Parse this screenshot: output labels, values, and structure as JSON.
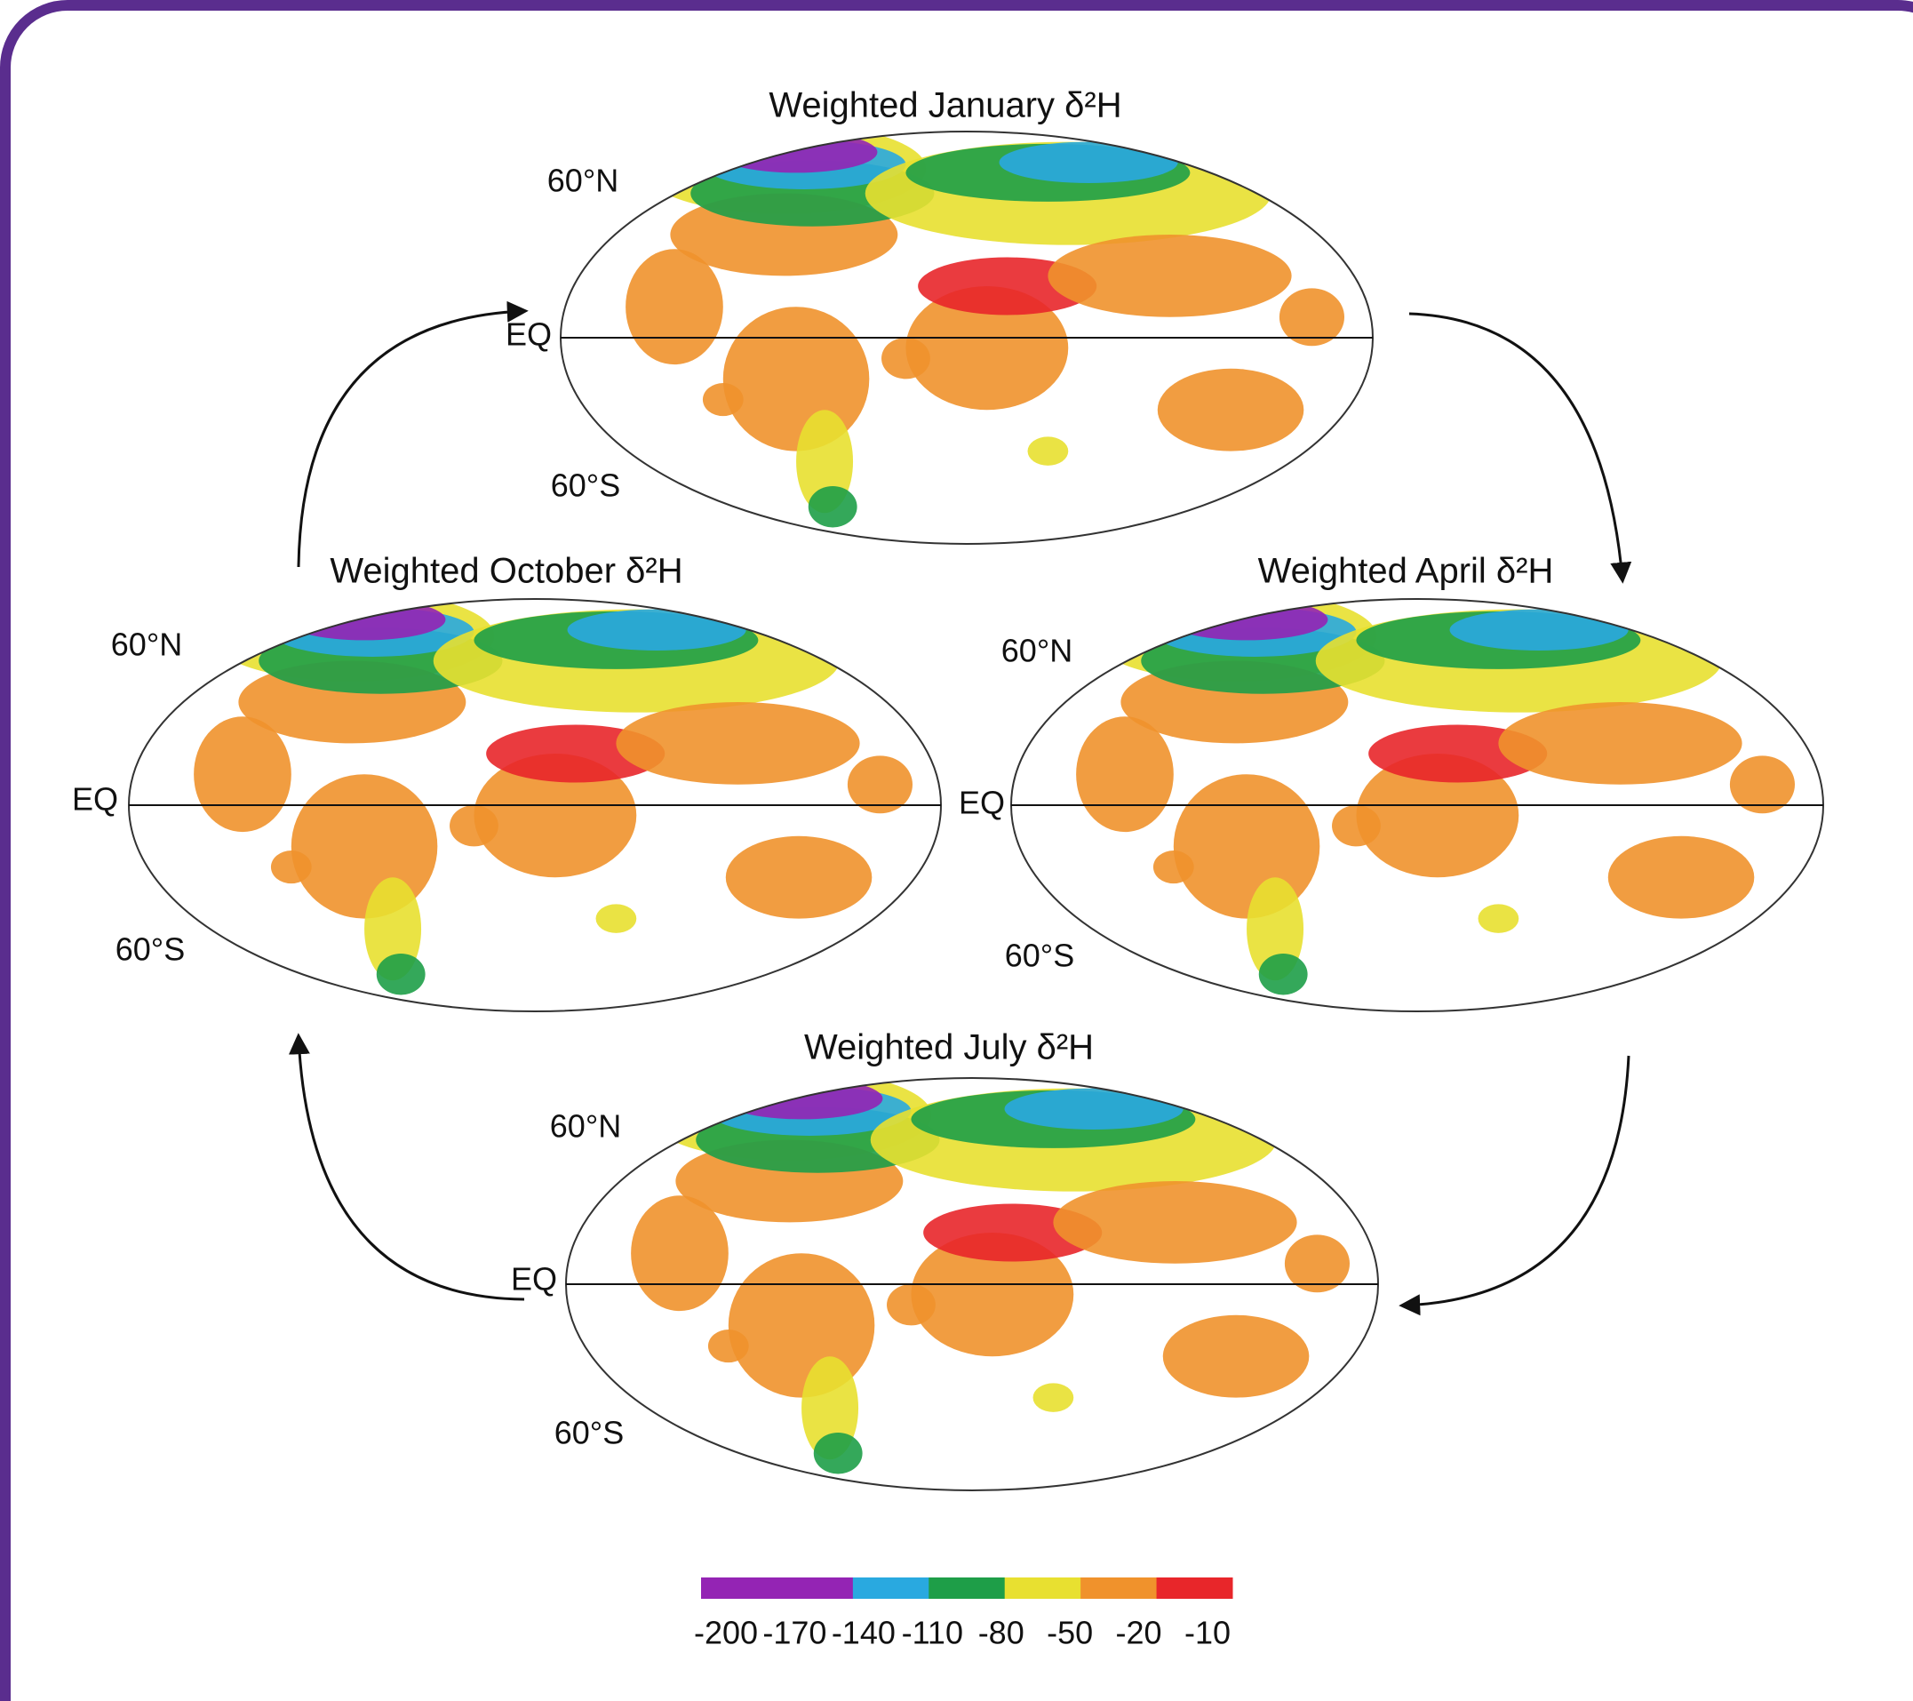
{
  "maps": [
    {
      "title": "Weighted January δ²H",
      "labels": [
        "60°N",
        "EQ",
        "60°S"
      ]
    },
    {
      "title": "Weighted April δ²H",
      "labels": [
        "60°N",
        "EQ",
        "60°S"
      ]
    },
    {
      "title": "Weighted July δ²H",
      "labels": [
        "60°N",
        "EQ",
        "60°S"
      ]
    },
    {
      "title": "Weighted October δ²H",
      "labels": [
        "60°N",
        "EQ",
        "60°S"
      ]
    }
  ],
  "colorbar": {
    "ticks": [
      -200,
      -170,
      -140,
      -110,
      -80,
      -50,
      -20,
      -10
    ],
    "colors": [
      "#9424b4",
      "#9424b4",
      "#29a9e0",
      "#1e9e48",
      "#e8e030",
      "#f0922c",
      "#e8262a"
    ]
  }
}
